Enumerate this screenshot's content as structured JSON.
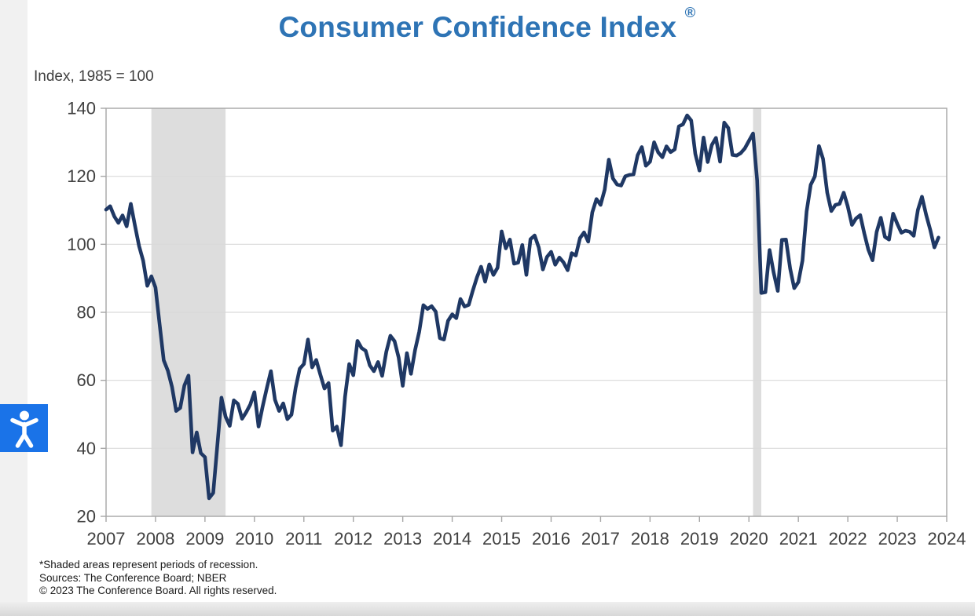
{
  "header": {
    "title": "Consumer Confidence Index",
    "registered": "®"
  },
  "colors": {
    "title_blue": "#2E74B5",
    "line_navy": "#1F3864",
    "recession_band": "#DDDDDD",
    "gridline": "#D9D9D9",
    "axis_border": "#A6A6A6",
    "tick_text": "#404040",
    "accessibility_blue": "#1A73E8",
    "background_white": "#FFFFFF",
    "page_margin_gray": "#F1F1F1"
  },
  "footnotes": {
    "line1": "*Shaded areas represent periods of recession.",
    "line2": "Sources: The Conference Board;  NBER",
    "line3": "© 2023 The Conference Board. All rights reserved."
  },
  "accessibility_button": {
    "icon": "accessibility-person-icon"
  },
  "chart_data": {
    "type": "line",
    "title": "Consumer Confidence Index ®",
    "xlabel": "",
    "ylabel": "Index, 1985 = 100",
    "ylim": [
      20,
      140
    ],
    "y_ticks": [
      20,
      40,
      60,
      80,
      100,
      120,
      140
    ],
    "x_tick_years": [
      2007,
      2008,
      2009,
      2010,
      2011,
      2012,
      2013,
      2014,
      2015,
      2016,
      2017,
      2018,
      2019,
      2020,
      2021,
      2022,
      2023,
      2024
    ],
    "grid": true,
    "legend": "none",
    "annotations": [
      "*Shaded areas represent periods of recession.",
      "Sources: The Conference Board;  NBER",
      "© 2023 The Conference Board. All rights reserved."
    ],
    "recessions": [
      {
        "start": "2007-12",
        "end": "2009-06"
      },
      {
        "start": "2020-02",
        "end": "2020-04"
      }
    ],
    "series": [
      {
        "name": "Consumer Confidence Index",
        "frequency": "monthly",
        "start_month": "2007-01",
        "end_month": "2023-11",
        "values": [
          110.2,
          111.2,
          108.2,
          106.3,
          108.5,
          105.3,
          111.9,
          105.6,
          99.5,
          95.2,
          87.8,
          90.6,
          87.3,
          76.4,
          65.9,
          62.8,
          58.1,
          51.0,
          51.9,
          58.5,
          61.4,
          38.8,
          44.7,
          38.6,
          37.4,
          25.3,
          26.9,
          40.8,
          54.9,
          49.3,
          46.6,
          54.1,
          53.1,
          48.7,
          50.6,
          52.9,
          56.5,
          46.4,
          52.3,
          57.7,
          62.7,
          54.3,
          51.0,
          53.2,
          48.6,
          49.9,
          57.8,
          63.4,
          64.8,
          72.0,
          63.8,
          66.0,
          61.7,
          57.6,
          59.2,
          45.2,
          46.4,
          40.9,
          55.2,
          64.8,
          61.5,
          71.6,
          69.5,
          68.7,
          64.4,
          62.7,
          65.4,
          61.3,
          68.4,
          73.1,
          71.5,
          66.7,
          58.4,
          68.0,
          61.9,
          69.0,
          74.3,
          82.1,
          81.0,
          81.8,
          80.2,
          72.4,
          72.0,
          77.5,
          79.4,
          78.3,
          83.9,
          81.7,
          82.2,
          86.4,
          90.3,
          93.4,
          89.0,
          94.1,
          91.0,
          93.1,
          103.8,
          98.8,
          101.4,
          94.3,
          94.6,
          99.8,
          91.0,
          101.5,
          102.6,
          99.1,
          92.6,
          96.3,
          97.8,
          94.0,
          96.1,
          94.7,
          92.4,
          97.4,
          96.7,
          101.8,
          103.5,
          100.8,
          109.4,
          113.3,
          111.6,
          116.1,
          124.9,
          119.4,
          117.6,
          117.3,
          120.0,
          120.4,
          120.6,
          126.2,
          128.6,
          123.1,
          124.3,
          130.0,
          127.0,
          125.6,
          128.8,
          127.1,
          127.9,
          134.7,
          135.3,
          137.9,
          136.4,
          126.6,
          121.7,
          131.4,
          124.2,
          129.2,
          131.3,
          124.3,
          135.8,
          134.2,
          126.3,
          126.1,
          126.8,
          128.2,
          130.4,
          132.6,
          118.8,
          85.7,
          85.9,
          98.3,
          91.7,
          86.3,
          101.3,
          101.4,
          92.9,
          87.1,
          88.9,
          95.2,
          109.7,
          117.5,
          120.0,
          128.9,
          125.1,
          115.2,
          109.8,
          111.6,
          111.9,
          115.2,
          111.1,
          105.7,
          107.6,
          108.6,
          103.2,
          98.4,
          95.3,
          103.6,
          107.8,
          102.2,
          101.4,
          109.0,
          106.0,
          103.4,
          104.0,
          103.7,
          102.5,
          110.1,
          114.0,
          108.7,
          104.3,
          99.1,
          102.0
        ]
      }
    ]
  }
}
